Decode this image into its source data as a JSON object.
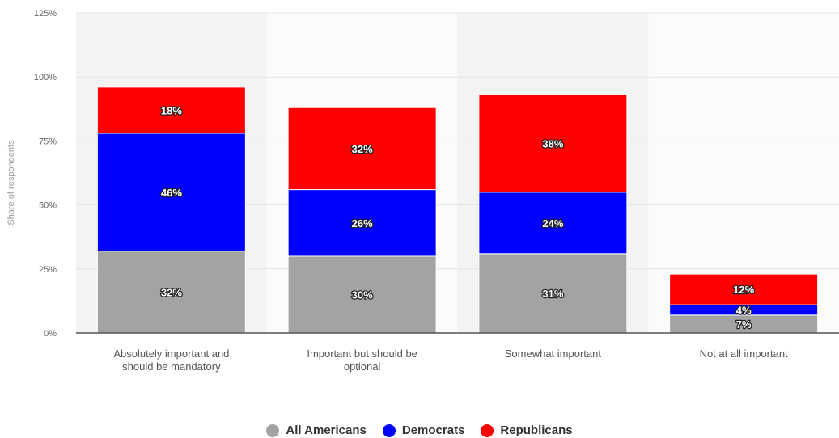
{
  "chart_data": {
    "type": "bar",
    "stacked": true,
    "categories": [
      [
        "Absolutely important and",
        "should be mandatory"
      ],
      [
        "Important but should be",
        "optional"
      ],
      [
        "Somewhat important"
      ],
      [
        "Not at all important"
      ]
    ],
    "series": [
      {
        "name": "All Americans",
        "color": "#a3a3a3",
        "values": [
          32,
          30,
          31,
          7
        ]
      },
      {
        "name": "Democrats",
        "color": "#0000ff",
        "values": [
          46,
          26,
          24,
          4
        ]
      },
      {
        "name": "Republicans",
        "color": "#ff0000",
        "values": [
          18,
          32,
          38,
          12
        ]
      }
    ],
    "data_labels": [
      [
        "32%",
        "30%",
        "31%",
        "7%"
      ],
      [
        "46%",
        "26%",
        "24%",
        "4%"
      ],
      [
        "18%",
        "32%",
        "38%",
        "12%"
      ]
    ],
    "ylabel": "Share of respondents",
    "ylim": [
      0,
      125
    ],
    "yticks": [
      0,
      25,
      50,
      75,
      100,
      125
    ],
    "ytick_labels": [
      "0%",
      "25%",
      "50%",
      "75%",
      "100%",
      "125%"
    ],
    "grid": true,
    "legend_position": "bottom"
  }
}
